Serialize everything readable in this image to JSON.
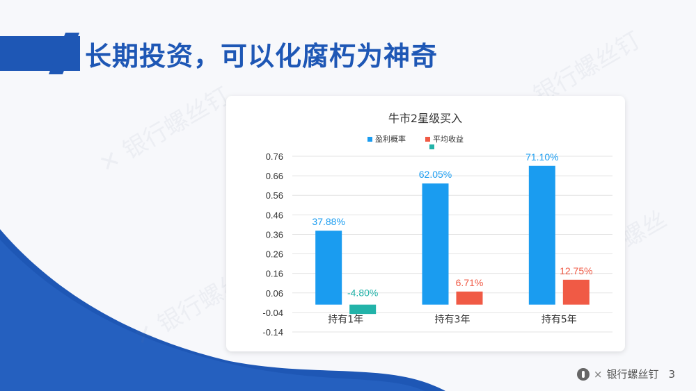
{
  "slide": {
    "title": "长期投资，可以化腐朽为神奇",
    "page_number": "3",
    "brand": "银行螺丝钉",
    "brand_separator": "×"
  },
  "colors": {
    "primary_blue": "#1e57b5",
    "bar_blue": "#1a9cf0",
    "bar_red": "#f05a45",
    "bar_teal": "#22b3a9"
  },
  "chart_data": {
    "type": "bar",
    "title": "牛市2星级买入",
    "categories": [
      "持有1年",
      "持有3年",
      "持有5年"
    ],
    "series": [
      {
        "name": "盈利概率",
        "values": [
          0.3788,
          0.6205,
          0.711
        ],
        "labels": [
          "37.88%",
          "62.05%",
          "71.10%"
        ]
      },
      {
        "name": "平均收益",
        "values": [
          -0.048,
          0.0671,
          0.1275
        ],
        "labels": [
          "-4.80%",
          "6.71%",
          "12.75%"
        ]
      }
    ],
    "yticks": [
      "0.76",
      "0.66",
      "0.56",
      "0.46",
      "0.36",
      "0.26",
      "0.16",
      "0.06",
      "-0.04",
      "-0.14"
    ],
    "ylim": [
      -0.14,
      0.76
    ],
    "grid": true,
    "legend_position": "top"
  }
}
